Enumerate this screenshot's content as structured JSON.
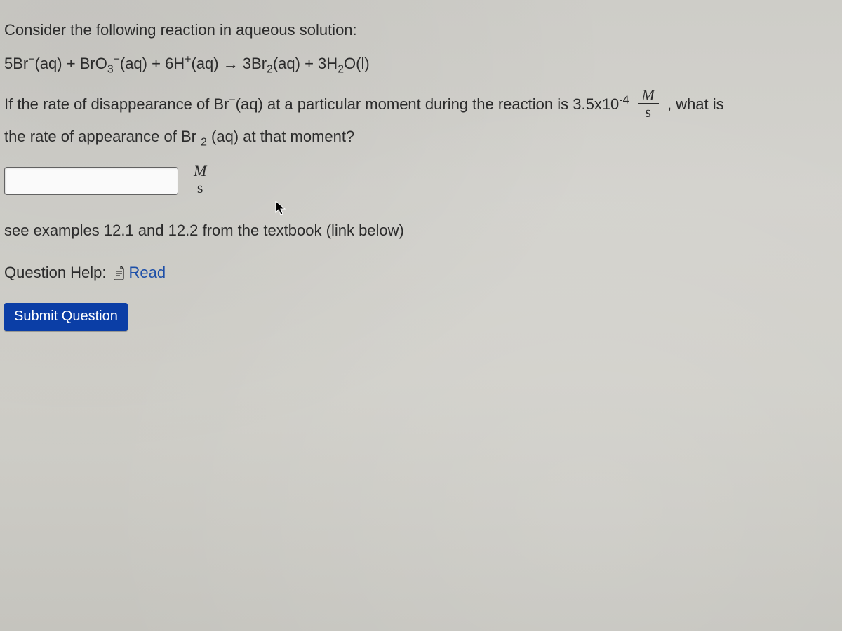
{
  "question": {
    "intro": "Consider the following reaction in aqueous solution:",
    "equation_html": "5Br<sup>−</sup>(aq) + BrO<sub>3</sub><sup>−</sup>(aq) + 6H<sup>+</sup>(aq) → 3Br<sub>2</sub>(aq) + 3H<sub>2</sub>O(l)",
    "body_pre": "If the rate of disappearance of Br<sup>−</sup>(aq) at a particular moment during the reaction is 3.5x10<sup>-4</sup>",
    "rate_unit_num": "M",
    "rate_unit_den": "s",
    "body_post": ", what is",
    "body_line2": "the rate of appearance of Br <sub>2</sub> (aq) at that moment?",
    "answer_value": "",
    "answer_unit_num": "M",
    "answer_unit_den": "s",
    "hint": "see examples 12.1 and 12.2 from the textbook (link below)",
    "help_label": "Question Help:",
    "read_label": "Read",
    "submit_label": "Submit Question"
  },
  "colors": {
    "link": "#1d4fa8",
    "button_bg": "#0b3ea6",
    "button_text": "#ffffff",
    "text": "#2b2b2b"
  }
}
